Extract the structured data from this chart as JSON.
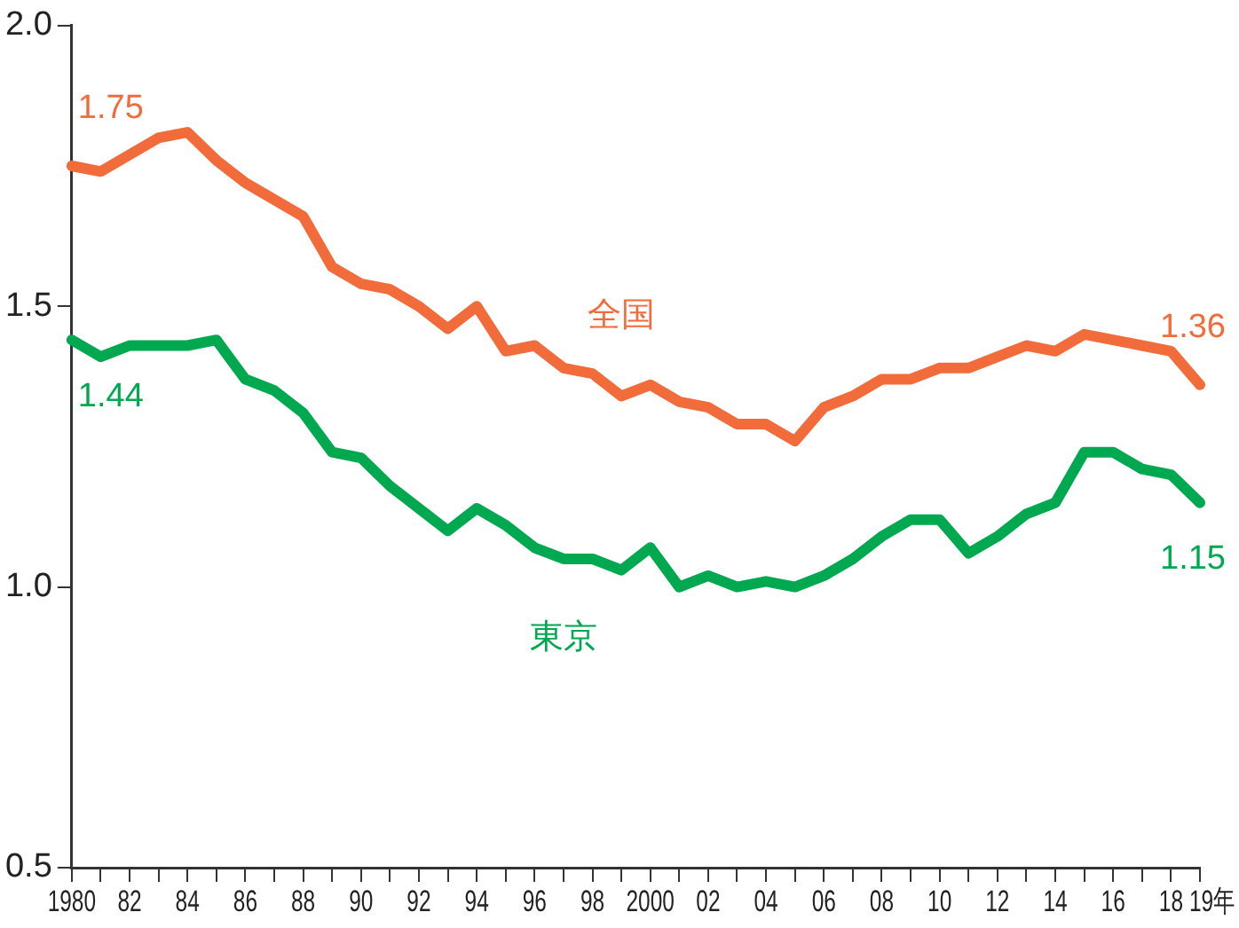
{
  "chart_data": {
    "type": "line",
    "categories": [
      "1980",
      null,
      "82",
      null,
      "84",
      null,
      "86",
      null,
      "88",
      null,
      "90",
      null,
      "92",
      null,
      "94",
      null,
      "96",
      null,
      "98",
      null,
      "2000",
      null,
      "02",
      null,
      "04",
      null,
      "06",
      null,
      "08",
      null,
      "10",
      null,
      "12",
      null,
      "14",
      null,
      "16",
      null,
      "18",
      "19年"
    ],
    "series": [
      {
        "name": "全国",
        "color": "#f26b3a",
        "values": [
          1.75,
          1.74,
          1.77,
          1.8,
          1.81,
          1.76,
          1.72,
          1.69,
          1.66,
          1.57,
          1.54,
          1.53,
          1.5,
          1.46,
          1.5,
          1.42,
          1.43,
          1.39,
          1.38,
          1.34,
          1.36,
          1.33,
          1.32,
          1.29,
          1.29,
          1.26,
          1.32,
          1.34,
          1.37,
          1.37,
          1.39,
          1.39,
          1.41,
          1.43,
          1.42,
          1.45,
          1.44,
          1.43,
          1.42,
          1.36
        ],
        "value_labels": [
          "1.75",
          null,
          null,
          null,
          null,
          null,
          null,
          null,
          null,
          null,
          null,
          null,
          null,
          null,
          null,
          null,
          null,
          null,
          null,
          null,
          null,
          null,
          null,
          null,
          null,
          null,
          null,
          null,
          null,
          null,
          null,
          null,
          null,
          null,
          null,
          null,
          null,
          null,
          null,
          "1.36"
        ]
      },
      {
        "name": "東京",
        "color": "#00a84f",
        "values": [
          1.44,
          1.41,
          1.43,
          1.43,
          1.43,
          1.44,
          1.37,
          1.35,
          1.31,
          1.24,
          1.23,
          1.18,
          1.14,
          1.1,
          1.14,
          1.11,
          1.07,
          1.05,
          1.05,
          1.03,
          1.07,
          1.0,
          1.02,
          1.0,
          1.01,
          1.0,
          1.02,
          1.05,
          1.09,
          1.12,
          1.12,
          1.06,
          1.09,
          1.13,
          1.15,
          1.24,
          1.24,
          1.21,
          1.2,
          1.15
        ],
        "value_labels": [
          "1.44",
          null,
          null,
          null,
          null,
          null,
          null,
          null,
          null,
          null,
          null,
          null,
          null,
          null,
          null,
          null,
          null,
          null,
          null,
          null,
          null,
          null,
          null,
          null,
          null,
          null,
          null,
          null,
          null,
          null,
          null,
          null,
          null,
          null,
          null,
          null,
          null,
          null,
          null,
          "1.15"
        ]
      }
    ],
    "ylim": [
      0.5,
      2.0
    ],
    "yticks": [
      {
        "value": 0.5,
        "label": "0.5"
      },
      {
        "value": 1,
        "label": "1.0"
      },
      1.5,
      {
        "value": 2,
        "label": "2.0"
      }
    ],
    "grid": false,
    "legend": false,
    "marker": "none",
    "line_style": "solid"
  }
}
